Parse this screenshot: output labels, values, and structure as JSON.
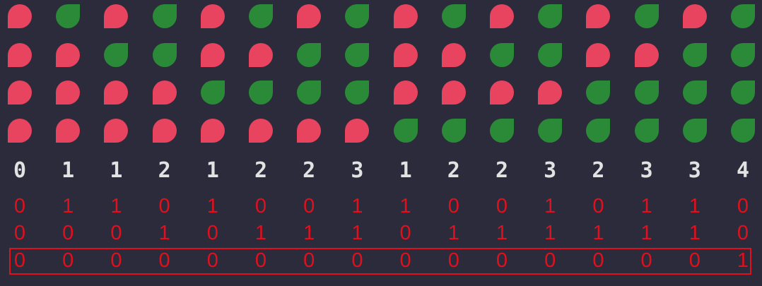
{
  "colors": {
    "background": "#2c2b3c",
    "red_drop": "#e8435f",
    "green_drop": "#2a8a37",
    "count_text": "#e2e2e2",
    "bit_text": "#e0101c"
  },
  "icons": {
    "red": "red-drop-icon",
    "green": "green-leaf-icon"
  },
  "grid": [
    [
      "red",
      "green",
      "red",
      "green",
      "red",
      "green",
      "red",
      "green",
      "red",
      "green",
      "red",
      "green",
      "red",
      "green",
      "red",
      "green"
    ],
    [
      "red",
      "red",
      "green",
      "green",
      "red",
      "red",
      "green",
      "green",
      "red",
      "red",
      "green",
      "green",
      "red",
      "red",
      "green",
      "green"
    ],
    [
      "red",
      "red",
      "red",
      "red",
      "green",
      "green",
      "green",
      "green",
      "red",
      "red",
      "red",
      "red",
      "green",
      "green",
      "green",
      "green"
    ],
    [
      "red",
      "red",
      "red",
      "red",
      "red",
      "red",
      "red",
      "red",
      "green",
      "green",
      "green",
      "green",
      "green",
      "green",
      "green",
      "green"
    ]
  ],
  "counts": [
    "0",
    "1",
    "1",
    "2",
    "1",
    "2",
    "2",
    "3",
    "1",
    "2",
    "2",
    "3",
    "2",
    "3",
    "3",
    "4"
  ],
  "bit_rows": [
    [
      "0",
      "1",
      "1",
      "0",
      "1",
      "0",
      "0",
      "1",
      "1",
      "0",
      "0",
      "1",
      "0",
      "1",
      "1",
      "0"
    ],
    [
      "0",
      "0",
      "0",
      "1",
      "0",
      "1",
      "1",
      "1",
      "0",
      "1",
      "1",
      "1",
      "1",
      "1",
      "1",
      "0"
    ],
    [
      "0",
      "0",
      "0",
      "0",
      "0",
      "0",
      "0",
      "0",
      "0",
      "0",
      "0",
      "0",
      "0",
      "0",
      "0",
      "1"
    ]
  ],
  "highlighted_bit_row": 2
}
